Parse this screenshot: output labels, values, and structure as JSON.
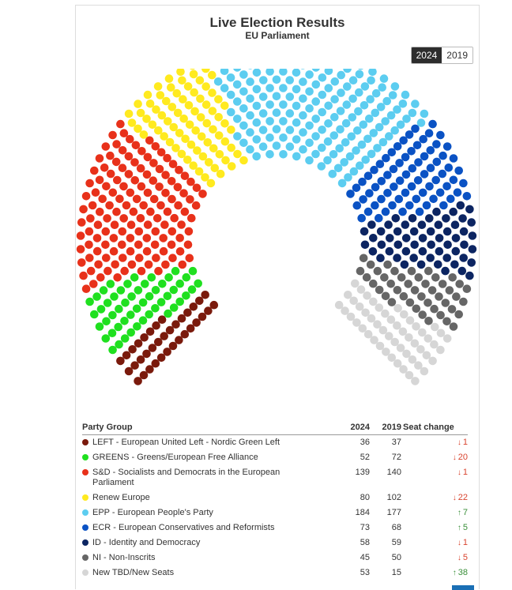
{
  "header": {
    "title": "Live Election Results",
    "subtitle": "EU Parliament"
  },
  "year_toggle": {
    "options": [
      "2024",
      "2019"
    ],
    "selected": "2024"
  },
  "table": {
    "headers": {
      "party": "Party Group",
      "y2024": "2024",
      "y2019": "2019",
      "change": "Seat change"
    }
  },
  "chart_data": {
    "type": "hemicycle",
    "title": "Live Election Results",
    "subtitle": "EU Parliament",
    "total_seats_2024": 720,
    "parties": [
      {
        "name": "LEFT - European United Left - Nordic Green Left",
        "color": "#7a1a0c",
        "seats_2024": 36,
        "seats_2019": 37,
        "change": "1",
        "direction": "down"
      },
      {
        "name": "GREENS - Greens/European Free Alliance",
        "color": "#1fe01f",
        "seats_2024": 52,
        "seats_2019": 72,
        "change": "20",
        "direction": "down"
      },
      {
        "name": "S&D - Socialists and Democrats in the European Parliament",
        "color": "#e8311a",
        "seats_2024": 139,
        "seats_2019": 140,
        "change": "1",
        "direction": "down"
      },
      {
        "name": "Renew Europe",
        "color": "#ffea1f",
        "seats_2024": 80,
        "seats_2019": 102,
        "change": "22",
        "direction": "down"
      },
      {
        "name": "EPP - European People's Party",
        "color": "#5ccdf0",
        "seats_2024": 184,
        "seats_2019": 177,
        "change": "7",
        "direction": "up"
      },
      {
        "name": "ECR - European Conservatives and Reformists",
        "color": "#0a52c4",
        "seats_2024": 73,
        "seats_2019": 68,
        "change": "5",
        "direction": "up"
      },
      {
        "name": "ID - Identity and Democracy",
        "color": "#0c2562",
        "seats_2024": 58,
        "seats_2019": 59,
        "change": "1",
        "direction": "down"
      },
      {
        "name": "NI - Non-Inscrits",
        "color": "#666666",
        "seats_2024": 45,
        "seats_2019": 50,
        "change": "5",
        "direction": "down"
      },
      {
        "name": "New TBD/New Seats",
        "color": "#d6d6d6",
        "seats_2024": 53,
        "seats_2019": 15,
        "change": "38",
        "direction": "up"
      }
    ]
  }
}
